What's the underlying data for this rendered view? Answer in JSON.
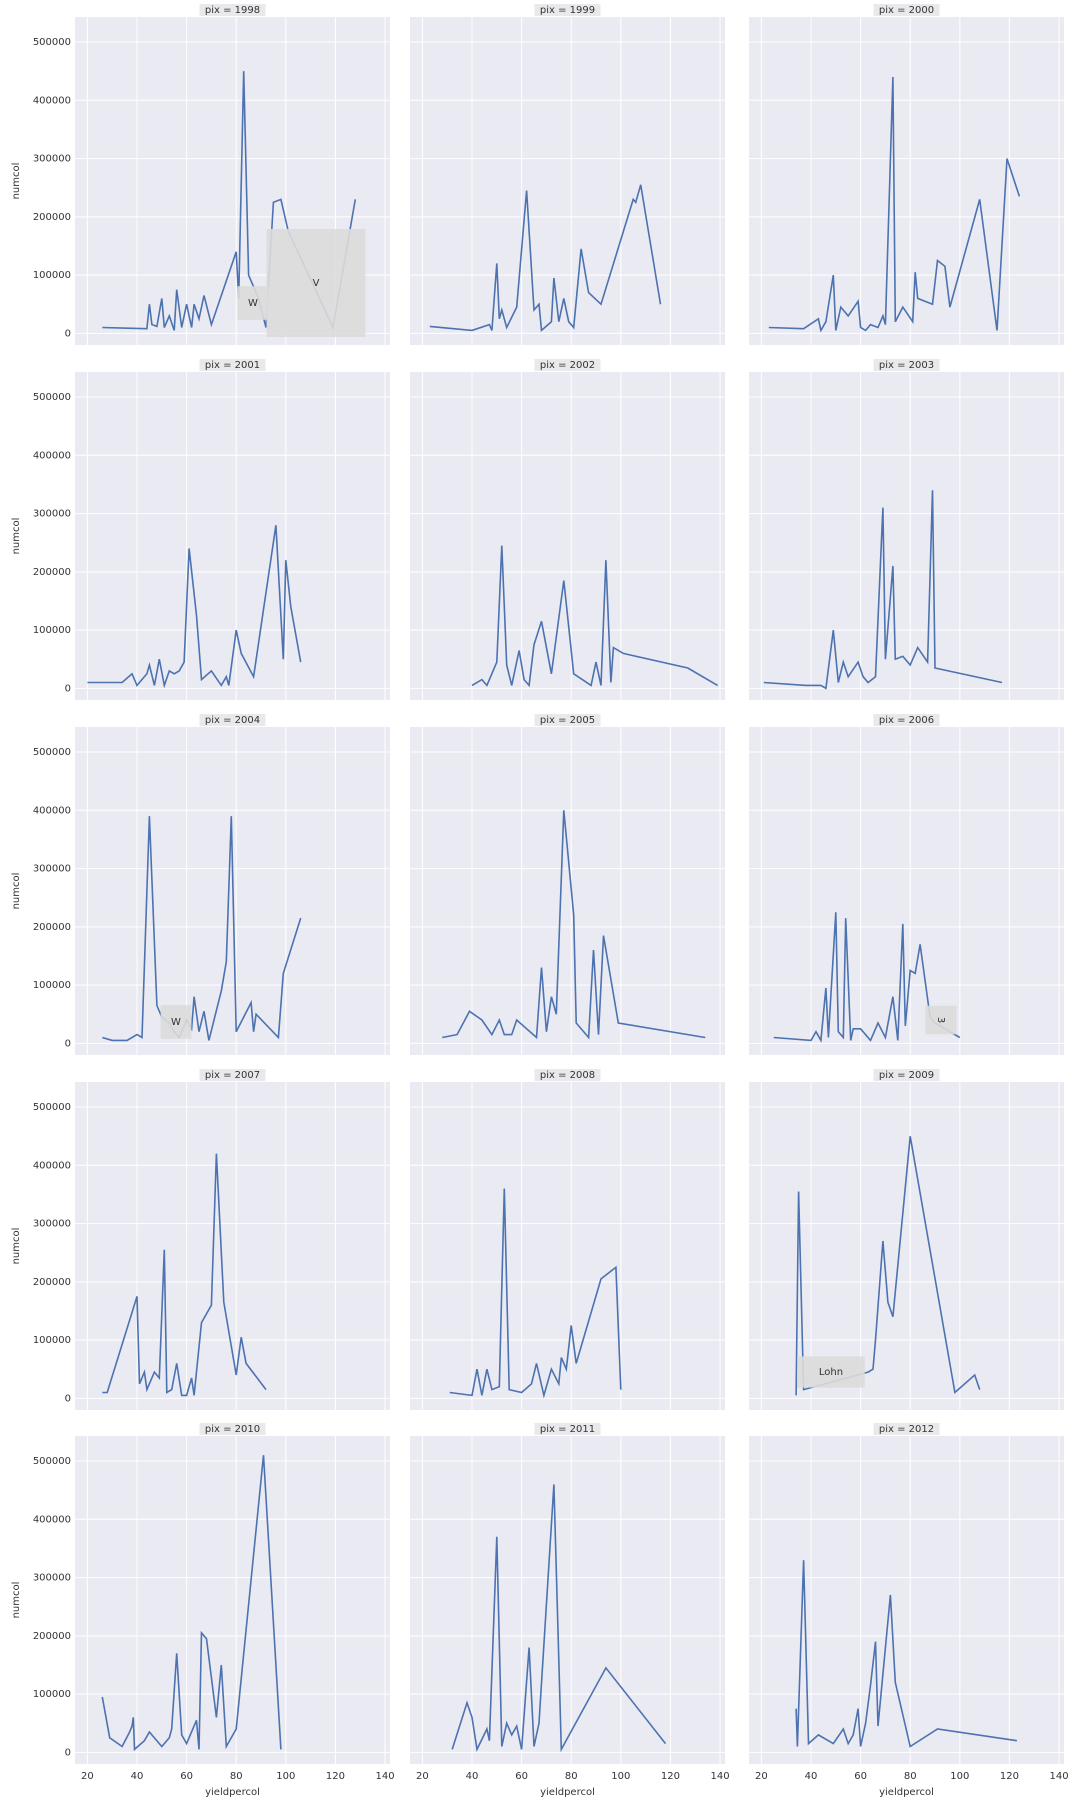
{
  "chart_data": {
    "type": "line",
    "xlabel": "yieldpercol",
    "ylabel": "numcol",
    "color": "#4c72b0",
    "xlim": [
      15,
      142
    ],
    "ylim": [
      -20000,
      543000
    ],
    "xticks": [
      20,
      40,
      60,
      80,
      100,
      120,
      140
    ],
    "yticks": [
      0,
      100000,
      200000,
      300000,
      400000,
      500000
    ],
    "grid": true,
    "facets": [
      {
        "title": "pix = 1998",
        "x": [
          26,
          44,
          45,
          46,
          48,
          50,
          51,
          53,
          55,
          56,
          58,
          60,
          62,
          63,
          65,
          67,
          70,
          76,
          80,
          81,
          83,
          85,
          89,
          92,
          95,
          98,
          101,
          119,
          128
        ],
        "values": [
          10000,
          8000,
          50000,
          15000,
          12000,
          60000,
          10000,
          30000,
          5000,
          75000,
          10000,
          50000,
          10000,
          50000,
          25000,
          65000,
          15000,
          90000,
          140000,
          60000,
          450000,
          100000,
          60000,
          10000,
          225000,
          230000,
          175000,
          10000,
          230000
        ]
      },
      {
        "title": "pix = 1999",
        "x": [
          23,
          40,
          47,
          48,
          50,
          51,
          52,
          54,
          58,
          62,
          65,
          67,
          68,
          72,
          73,
          75,
          77,
          79,
          81,
          84,
          87,
          92,
          105,
          106,
          108,
          116
        ],
        "values": [
          12000,
          5000,
          15000,
          5000,
          120000,
          25000,
          40000,
          10000,
          45000,
          245000,
          40000,
          50000,
          5000,
          20000,
          95000,
          20000,
          60000,
          20000,
          10000,
          145000,
          70000,
          50000,
          230000,
          225000,
          255000,
          50000
        ]
      },
      {
        "title": "pix = 2000",
        "x": [
          23,
          37,
          43,
          44,
          46,
          49,
          50,
          52,
          55,
          59,
          60,
          62,
          64,
          67,
          69,
          70,
          73,
          74,
          77,
          81,
          82,
          83,
          89,
          91,
          94,
          96,
          108,
          115,
          119,
          124
        ],
        "values": [
          10000,
          8000,
          25000,
          5000,
          20000,
          100000,
          5000,
          45000,
          30000,
          55000,
          10000,
          5000,
          15000,
          10000,
          30000,
          15000,
          440000,
          20000,
          45000,
          20000,
          105000,
          60000,
          50000,
          125000,
          115000,
          45000,
          230000,
          5000,
          300000,
          235000
        ]
      },
      {
        "title": "pix = 2001",
        "x": [
          20,
          34,
          38,
          40,
          44,
          45,
          47,
          49,
          51,
          53,
          55,
          57,
          59,
          61,
          64,
          66,
          70,
          74,
          76,
          77,
          80,
          82,
          87,
          96,
          99,
          100,
          102,
          106
        ],
        "values": [
          10000,
          10000,
          25000,
          5000,
          25000,
          40000,
          5000,
          50000,
          5000,
          30000,
          25000,
          30000,
          45000,
          240000,
          125000,
          15000,
          30000,
          5000,
          20000,
          5000,
          100000,
          60000,
          20000,
          280000,
          50000,
          220000,
          140000,
          45000
        ]
      },
      {
        "title": "pix = 2002",
        "x": [
          40,
          44,
          46,
          50,
          52,
          54,
          56,
          59,
          61,
          63,
          65,
          68,
          72,
          77,
          81,
          88,
          90,
          92,
          94,
          96,
          97,
          101,
          127,
          139
        ],
        "values": [
          5000,
          15000,
          5000,
          45000,
          245000,
          40000,
          5000,
          65000,
          15000,
          5000,
          75000,
          115000,
          25000,
          185000,
          25000,
          5000,
          45000,
          5000,
          220000,
          10000,
          70000,
          60000,
          35000,
          5000
        ]
      },
      {
        "title": "pix = 2003",
        "x": [
          21,
          38,
          44,
          46,
          49,
          51,
          53,
          55,
          59,
          61,
          63,
          66,
          69,
          70,
          73,
          74,
          77,
          80,
          83,
          87,
          89,
          90,
          117
        ],
        "values": [
          10000,
          5000,
          5000,
          0,
          100000,
          10000,
          45000,
          20000,
          45000,
          20000,
          10000,
          20000,
          310000,
          50000,
          210000,
          50000,
          55000,
          40000,
          70000,
          45000,
          340000,
          35000,
          10000
        ]
      },
      {
        "title": "pix = 2004",
        "x": [
          26,
          30,
          36,
          40,
          42,
          45,
          48,
          50,
          53,
          55,
          57,
          60,
          62,
          63,
          65,
          67,
          69,
          74,
          76,
          78,
          80,
          86,
          87,
          88,
          97,
          99,
          106
        ],
        "values": [
          10000,
          5000,
          5000,
          15000,
          10000,
          390000,
          65000,
          45000,
          35000,
          20000,
          10000,
          40000,
          25000,
          80000,
          20000,
          55000,
          5000,
          90000,
          140000,
          390000,
          20000,
          70000,
          20000,
          50000,
          10000,
          120000,
          215000
        ]
      },
      {
        "title": "pix = 2005",
        "x": [
          28,
          34,
          39,
          44,
          48,
          51,
          53,
          56,
          58,
          66,
          68,
          70,
          72,
          74,
          77,
          81,
          82,
          87,
          89,
          91,
          93,
          99,
          134
        ],
        "values": [
          10000,
          15000,
          55000,
          40000,
          15000,
          40000,
          15000,
          15000,
          40000,
          10000,
          130000,
          20000,
          80000,
          50000,
          400000,
          220000,
          35000,
          10000,
          160000,
          15000,
          185000,
          35000,
          10000
        ]
      },
      {
        "title": "pix = 2006",
        "x": [
          25,
          40,
          42,
          44,
          46,
          47,
          50,
          51,
          53,
          54,
          56,
          57,
          60,
          64,
          67,
          70,
          73,
          75,
          77,
          78,
          80,
          82,
          84,
          88,
          90,
          100
        ],
        "values": [
          10000,
          5000,
          20000,
          5000,
          95000,
          10000,
          225000,
          20000,
          10000,
          215000,
          5000,
          25000,
          25000,
          5000,
          35000,
          10000,
          80000,
          5000,
          205000,
          30000,
          125000,
          120000,
          170000,
          45000,
          35000,
          10000
        ]
      },
      {
        "title": "pix = 2007",
        "x": [
          26,
          28,
          40,
          41,
          43,
          44,
          47,
          49,
          51,
          52,
          54,
          56,
          58,
          60,
          62,
          63,
          66,
          70,
          72,
          75,
          80,
          82,
          84,
          92
        ],
        "values": [
          10000,
          10000,
          175000,
          25000,
          45000,
          15000,
          45000,
          35000,
          255000,
          10000,
          15000,
          60000,
          5000,
          5000,
          35000,
          5000,
          130000,
          160000,
          420000,
          165000,
          40000,
          105000,
          60000,
          15000
        ]
      },
      {
        "title": "pix = 2008",
        "x": [
          31,
          40,
          42,
          44,
          46,
          48,
          51,
          53,
          55,
          60,
          64,
          66,
          69,
          72,
          75,
          76,
          78,
          80,
          82,
          92,
          98,
          100
        ],
        "values": [
          10000,
          5000,
          50000,
          5000,
          50000,
          15000,
          20000,
          360000,
          15000,
          10000,
          25000,
          60000,
          5000,
          50000,
          25000,
          70000,
          50000,
          125000,
          60000,
          205000,
          225000,
          15000
        ]
      },
      {
        "title": "pix = 2009",
        "x": [
          34,
          35,
          37,
          63,
          65,
          66,
          69,
          71,
          73,
          80,
          98,
          106,
          108
        ],
        "values": [
          5000,
          355000,
          15000,
          45000,
          50000,
          100000,
          270000,
          165000,
          140000,
          450000,
          10000,
          40000,
          15000
        ]
      },
      {
        "title": "pix = 2010",
        "x": [
          26,
          29,
          34,
          37,
          38,
          38.5,
          39,
          43,
          45,
          50,
          53,
          54,
          56,
          58,
          60,
          64,
          65,
          66,
          68,
          72,
          74,
          76,
          80,
          91,
          98
        ],
        "values": [
          95000,
          25000,
          10000,
          35000,
          45000,
          60000,
          5000,
          20000,
          35000,
          10000,
          25000,
          40000,
          170000,
          30000,
          15000,
          55000,
          5000,
          205000,
          195000,
          60000,
          150000,
          10000,
          40000,
          510000,
          5000
        ]
      },
      {
        "title": "pix = 2011",
        "x": [
          32,
          38,
          40,
          42,
          46,
          47,
          50,
          52,
          54,
          56,
          58,
          60,
          63,
          65,
          67,
          73,
          76,
          94,
          118
        ],
        "values": [
          5000,
          85000,
          60000,
          5000,
          40000,
          20000,
          370000,
          10000,
          50000,
          30000,
          45000,
          5000,
          180000,
          10000,
          50000,
          460000,
          5000,
          145000,
          15000
        ]
      },
      {
        "title": "pix = 2012",
        "x": [
          34,
          34.5,
          37,
          39,
          43,
          49,
          53,
          55,
          57,
          59,
          60,
          62,
          64,
          66,
          67,
          72,
          74,
          80,
          91,
          123
        ],
        "values": [
          75000,
          10000,
          330000,
          15000,
          30000,
          15000,
          40000,
          15000,
          30000,
          75000,
          10000,
          50000,
          115000,
          190000,
          45000,
          270000,
          120000,
          10000,
          40000,
          20000
        ]
      }
    ],
    "annotations": [
      "W",
      "V",
      "W",
      "3",
      "Lohn"
    ]
  }
}
